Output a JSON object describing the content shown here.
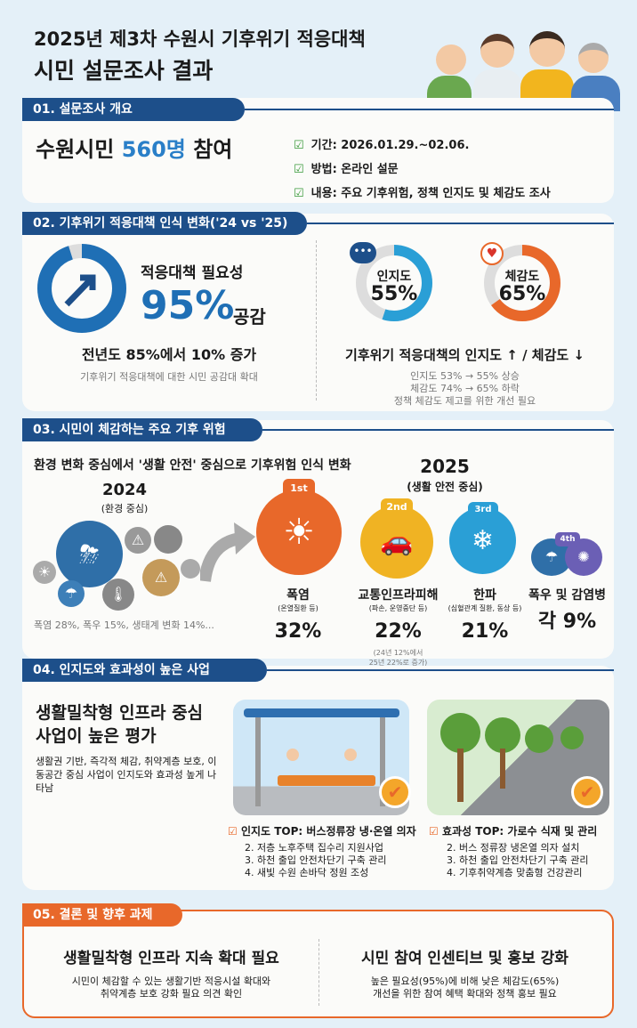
{
  "title": {
    "line1": "2025년 제3차 수원시 기후위기 적응대책",
    "line2": "시민 설문조사 결과"
  },
  "s1": {
    "header": "01. 설문조사 개요",
    "headline_pre": "수원시민 ",
    "headline_num": "560명",
    "headline_post": " 참여",
    "items": [
      "기간: 2026.01.29.~02.06.",
      "방법: 온라인 설문",
      "내용: 주요 기후위험, 정책 인지도 및 체감도 조사"
    ]
  },
  "s2": {
    "header": "02. 기후위기 적응대책 인식 변화('24 vs '25)",
    "need_label": "적응대책 필요성",
    "need_value": "95%",
    "need_pct": 95,
    "need_suffix": "공감",
    "change": "전년도 85%에서 10% 증가",
    "change_sub": "기후위기 적응대책에 대한 시민 공감대 확대",
    "aware_label": "인지도",
    "aware_value": "55%",
    "aware_pct": 55,
    "feel_label": "체감도",
    "feel_value": "65%",
    "feel_pct": 65,
    "right_title": "기후위기 적응대책의 인지도 ↑ / 체감도 ↓",
    "right_lines": [
      "인지도 53% → 55% 상승",
      "체감도 74% → 65% 하락",
      "정책 체감도 제고를 위한 개선 필요"
    ]
  },
  "s3": {
    "header": "03. 시민이 체감하는 주요 기후 위험",
    "subtitle": "환경 변화 중심에서 '생활 안전' 중심으로 기후위험 인식 변화",
    "y2024": "2024",
    "y2024_sub": "(환경 중심)",
    "y2024_stats": "폭염 28%, 폭우 15%, 생태계 변화 14%...",
    "y2025": "2025",
    "y2025_sub": "(생활 안전 중심)",
    "ranks": [
      {
        "badge": "1st",
        "name": "폭염",
        "sub": "(온열질환 등)",
        "value": "32%",
        "color": "#e8682a"
      },
      {
        "badge": "2nd",
        "name": "교통인프라피해",
        "sub": "(파손, 운영중단 등)",
        "value": "22%",
        "note1": "(24년 12%에서",
        "note2": "25년 22%로 증가)",
        "color": "#f0b323"
      },
      {
        "badge": "3rd",
        "name": "한파",
        "sub": "(심혈관계 질환, 동상 등)",
        "value": "21%",
        "color": "#2a9fd6"
      },
      {
        "badge": "4th",
        "name": "폭우 및 감염병",
        "value": "각 9%",
        "color": "#6b5fb5"
      }
    ]
  },
  "s4": {
    "header": "04. 인지도와 효과성이 높은 사업",
    "title1": "생활밀착형 인프라 중심",
    "title2": "사업이 높은 평가",
    "desc": "생활권 기반, 즉각적 체감, 취약계층 보호, 이동공간 중심 사업이 인지도와 효과성 높게 나타남",
    "left_top": "인지도 TOP: 버스정류장 냉·온열 의자",
    "left_items": [
      "2. 저층 노후주택 집수리 지원사업",
      "3. 하천 출입 안전차단기 구축 관리",
      "4. 새빛 수원 손바닥 정원 조성"
    ],
    "right_top": "효과성 TOP: 가로수 식재 및 관리",
    "right_items": [
      "2. 버스 정류장 냉온열 의자 설치",
      "3. 하천 출입 안전차단기 구축 관리",
      "4. 기후취약계층 맞춤형 건강관리"
    ]
  },
  "s5": {
    "header": "05. 결론 및 향후 과제",
    "left_title": "생활밀착형 인프라 지속 확대 필요",
    "left_desc1": "시민이 체감할 수 있는 생활기반 적응시설 확대와",
    "left_desc2": "취약계층 보호 강화 필요 의견 확인",
    "right_title": "시민 참여 인센티브 및 홍보 강화",
    "right_desc1": "높은 필요성(95%)에 비해 낮은 체감도(65%)",
    "right_desc2": "개선을 위한 참여 혜택 확대와 정책 홍보 필요"
  },
  "colors": {
    "navy": "#1d4f8a",
    "blue": "#2a7fc8",
    "orange": "#e8682a"
  }
}
